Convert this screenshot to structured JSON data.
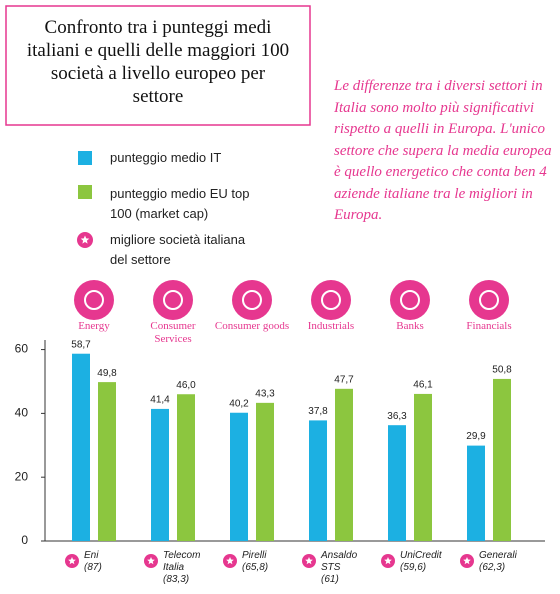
{
  "chart_data": {
    "type": "bar",
    "title": "Confronto tra i punteggi medi italiani e quelli delle maggiori 100 società a livello europeo per settore",
    "annotation": "Le differenze tra i diversi settori in Italia sono molto più significativi rispetto a quelli in Europa. L'unico settore che supera la media europea è quello energetico che conta ben 4 aziende italiane tra le migliori in Europa.",
    "best_company_legend": "migliore società italiana del settore",
    "categories": [
      "Energy",
      "Consumer Services",
      "Consumer goods",
      "Industrials",
      "Banks",
      "Financials"
    ],
    "companies": [
      {
        "name": "Eni",
        "score": "(87)"
      },
      {
        "name": "Telecom Italia",
        "score": "(83,3)"
      },
      {
        "name": "Pirelli",
        "score": "(65,8)"
      },
      {
        "name": "Ansaldo STS",
        "score": "(61)"
      },
      {
        "name": "UniCredit",
        "score": "(59,6)"
      },
      {
        "name": "Generali",
        "score": "(62,3)"
      }
    ],
    "series": [
      {
        "name": "punteggio medio IT",
        "color": "#1cb0e2",
        "values": [
          58.7,
          41.4,
          40.2,
          37.8,
          36.3,
          29.9
        ],
        "value_labels": [
          "58,7",
          "41,4",
          "40,2",
          "37,8",
          "36,3",
          "29,9"
        ]
      },
      {
        "name": "punteggio medio EU top 100 (market cap)",
        "color": "#8cc63f",
        "values": [
          49.8,
          46.0,
          43.3,
          47.7,
          46.1,
          50.8
        ],
        "value_labels": [
          "49,8",
          "46,0",
          "43,3",
          "47,7",
          "46,1",
          "50,8"
        ]
      }
    ],
    "accent_color": "#e6378f",
    "ylim": [
      0,
      63
    ],
    "yticks": [
      0,
      20,
      40,
      60
    ]
  }
}
